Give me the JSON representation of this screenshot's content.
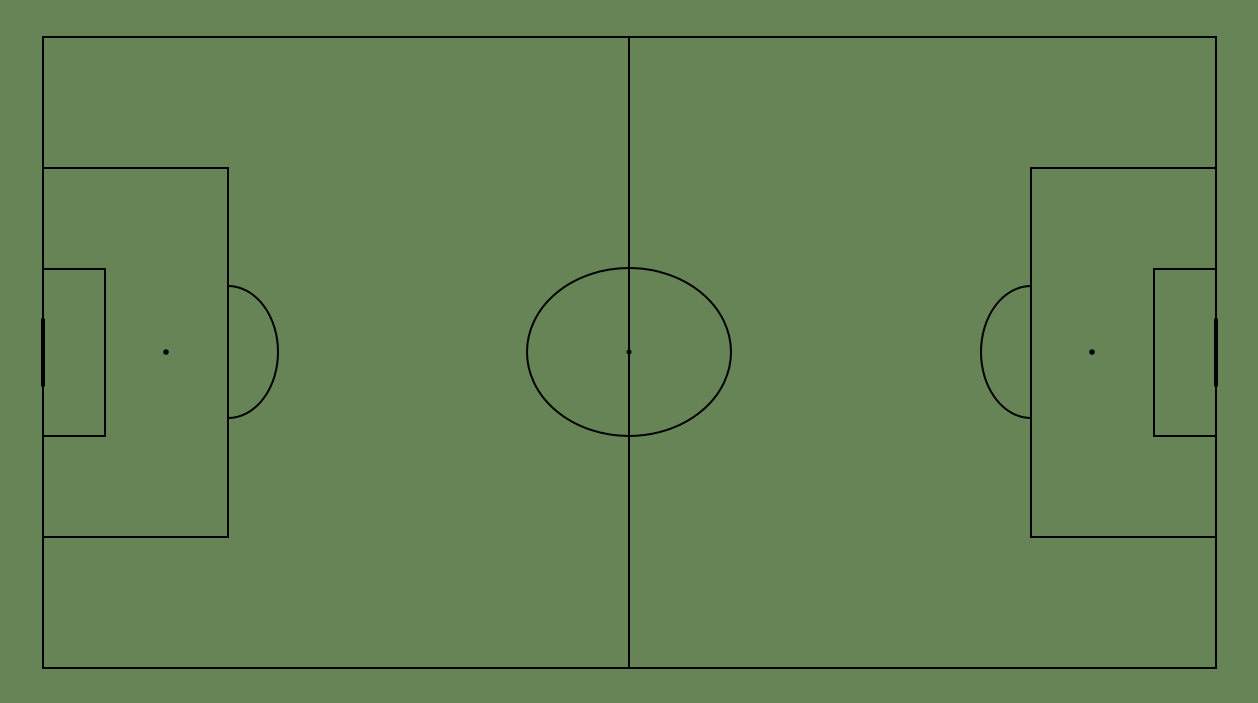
{
  "colors": {
    "grass": "#668455",
    "lines": "#000000"
  },
  "pitch": {
    "elements": [
      "touchline-boundary",
      "halfway-line",
      "center-circle",
      "center-spot",
      "penalty-area-left",
      "goal-area-left",
      "penalty-spot-left",
      "penalty-arc-left",
      "goal-left",
      "penalty-area-right",
      "goal-area-right",
      "penalty-spot-right",
      "penalty-arc-right",
      "goal-right"
    ]
  }
}
